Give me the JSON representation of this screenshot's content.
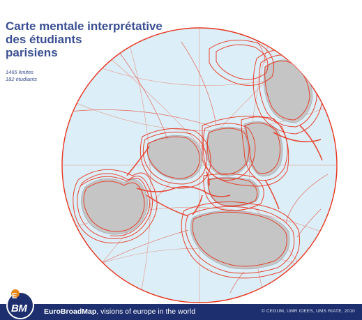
{
  "title": {
    "line1": "Carte mentale interprétative",
    "line2": "des étudiants",
    "line3": "parisiens"
  },
  "stats": {
    "line1": "1465 limites",
    "line2": "182 étudiants"
  },
  "footer": {
    "brand": "EuroBroadMap",
    "tagline": ", visions of europe in the world",
    "credit": "© CEGUM, UMR IDEES, UMS RIATE, 2010"
  },
  "logo": {
    "letters": "BM",
    "top_letter": "E"
  },
  "colors": {
    "ocean": "#dceef7",
    "land": "#c5c5c5",
    "boundary": "#e8331c",
    "title": "#3a4f92",
    "footer_bg": "#1d2f6e"
  }
}
